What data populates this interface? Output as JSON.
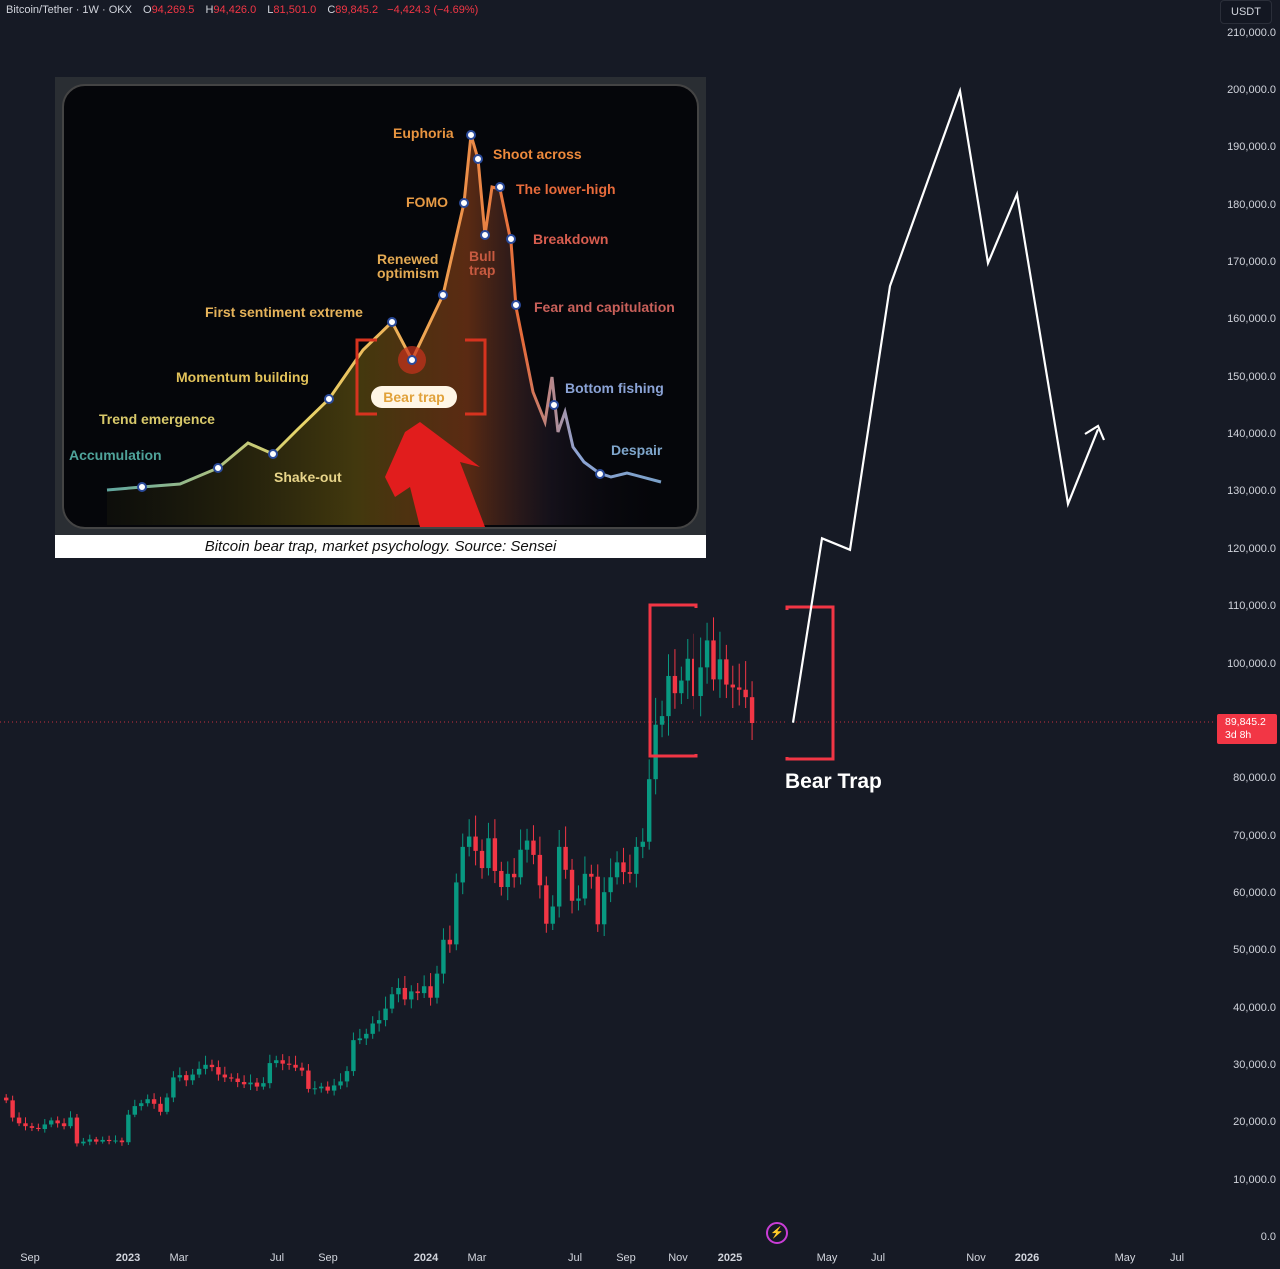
{
  "header": {
    "symbol": "Bitcoin/Tether · 1W · OKX",
    "open_label": "O",
    "open": "94,269.5",
    "high_label": "H",
    "high": "94,426.0",
    "low_label": "L",
    "low": "81,501.0",
    "close_label": "C",
    "close": "89,845.2",
    "change": "−4,424.3 (−4.69%)"
  },
  "currency": "USDT",
  "price_tag": {
    "price": "89,845.2",
    "countdown": "3d 8h"
  },
  "annotation": {
    "bear_trap": "Bear Trap"
  },
  "inset": {
    "caption": "Bitcoin bear trap, market psychology. Source: Sensei",
    "pill": "Bear trap",
    "labels": [
      {
        "text": "Accumulation",
        "color": "#4fa39a"
      },
      {
        "text": "Trend emergence",
        "color": "#d8c86a"
      },
      {
        "text": "Shake-out",
        "color": "#e8d58a"
      },
      {
        "text": "Momentum building",
        "color": "#e2c25a"
      },
      {
        "text": "First sentiment extreme",
        "color": "#e6b35a"
      },
      {
        "text": "Renewed",
        "color": "#e3a953"
      },
      {
        "text": "optimism",
        "color": "#e3a953"
      },
      {
        "text": "FOMO",
        "color": "#e79a45"
      },
      {
        "text": "Euphoria",
        "color": "#e89440"
      },
      {
        "text": "Shoot across",
        "color": "#ee8a3c"
      },
      {
        "text": "Bull",
        "color": "#c75a40"
      },
      {
        "text": "trap",
        "color": "#c75a40"
      },
      {
        "text": "The lower-high",
        "color": "#e86b3b"
      },
      {
        "text": "Breakdown",
        "color": "#d85d4f"
      },
      {
        "text": "Fear and capitulation",
        "color": "#c9605a"
      },
      {
        "text": "Bottom fishing",
        "color": "#8ba3d6"
      },
      {
        "text": "Despair",
        "color": "#7fa6cc"
      }
    ]
  },
  "colors": {
    "up": "#089981",
    "down": "#f23645",
    "bg": "#161a25",
    "projection": "#ffffff",
    "box": "#f23645"
  },
  "chart_data": {
    "type": "candlestick",
    "title": "Bitcoin/Tether · 1W · OKX",
    "ylim": [
      0,
      210000
    ],
    "y_ticks": [
      "210,000.0",
      "200,000.0",
      "190,000.0",
      "180,000.0",
      "170,000.0",
      "160,000.0",
      "150,000.0",
      "140,000.0",
      "130,000.0",
      "120,000.0",
      "110,000.0",
      "100,000.0",
      "80,000.0",
      "70,000.0",
      "60,000.0",
      "50,000.0",
      "40,000.0",
      "30,000.0",
      "20,000.0",
      "10,000.0",
      "0.0"
    ],
    "x_ticks": [
      "Sep",
      "2023",
      "Mar",
      "Jul",
      "Sep",
      "2024",
      "Mar",
      "Jul",
      "Sep",
      "Nov",
      "2025",
      "May",
      "Jul",
      "Nov",
      "2026",
      "May",
      "Jul"
    ],
    "year_ticks": [
      "2023",
      "2024",
      "2025",
      "2026"
    ],
    "projection_path": [
      89845,
      122000,
      120000,
      166000,
      200000,
      170000,
      182000,
      128000,
      141000
    ],
    "closes": [
      24000,
      21000,
      20000,
      19500,
      19200,
      19000,
      19800,
      20500,
      20000,
      19500,
      21000,
      16500,
      16800,
      17200,
      16800,
      17100,
      16900,
      17000,
      16700,
      21500,
      23000,
      23500,
      24200,
      23400,
      22000,
      24500,
      28000,
      28400,
      27500,
      28500,
      29500,
      30200,
      29800,
      28500,
      28000,
      27800,
      27200,
      26800,
      27100,
      26400,
      27000,
      30500,
      31000,
      30400,
      30200,
      29700,
      29200,
      26000,
      26100,
      26400,
      25700,
      26600,
      27300,
      29100,
      34500,
      34800,
      35600,
      37400,
      38000,
      40000,
      42500,
      43600,
      41600,
      43000,
      42700,
      43900,
      41900,
      46100,
      52000,
      51200,
      62000,
      68200,
      70000,
      67500,
      64500,
      69700,
      64000,
      61200,
      63500,
      62900,
      67700,
      69300,
      66800,
      61500,
      54800,
      57800,
      68200,
      64200,
      58800,
      59200,
      63500,
      63000,
      54700,
      60300,
      62900,
      65500,
      63800,
      63500,
      68200,
      69100,
      80000,
      89500,
      91000,
      98000,
      95000,
      97200,
      101000,
      94500,
      99500,
      104200,
      97400,
      100900,
      96500,
      96000,
      95600,
      94300,
      89800
    ]
  }
}
